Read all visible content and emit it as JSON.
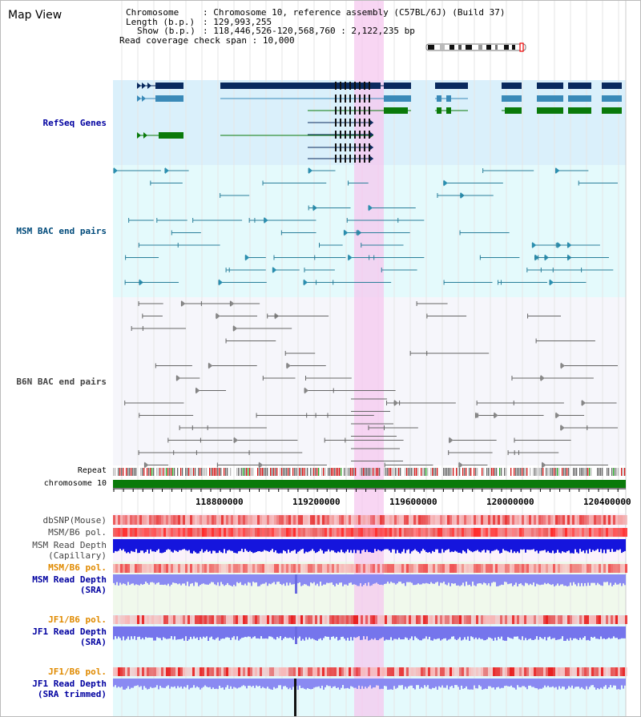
{
  "window": {
    "title": "Map View"
  },
  "header": {
    "chromosome_label": "Chromosome",
    "chromosome_value": "Chromosome 10, reference assembly (C57BL/6J) (Build 37)",
    "length_label": "Length (b.p.)",
    "length_value": "129,993,255",
    "show_label": "Show (b.p.)",
    "show_value": "118,446,526-120,568,760 : 2,122,235 bp",
    "coverage_label": "Read coverage check span",
    "coverage_value": "10,000"
  },
  "tracks": {
    "refseq": "RefSeq Genes",
    "msm_bac": "MSM BAC end pairs",
    "b6n_bac": "B6N BAC end pairs",
    "repeat": "Repeat",
    "chromosome": "chromosome 10",
    "dbsnp": "dbSNP(Mouse)",
    "msm_b6_pol_1": "MSM/B6 pol.",
    "msm_depth_cap_1": "MSM Read Depth",
    "msm_depth_cap_2": "(Capillary)",
    "msm_b6_pol_2": "MSM/B6 pol.",
    "msm_depth_sra_1": "MSM Read Depth",
    "msm_depth_sra_2": "(SRA)",
    "jf1_b6_pol_1": "JF1/B6 pol.",
    "jf1_depth_sra_1": "JF1 Read Depth",
    "jf1_depth_sra_2": "(SRA)",
    "jf1_b6_pol_2": "JF1/B6 pol.",
    "jf1_depth_trim_1": "JF1 Read Depth",
    "jf1_depth_trim_2": "(SRA trimmed)"
  },
  "axis": {
    "ticks": [
      "118800000",
      "119200000",
      "119600000",
      "120000000",
      "120400000"
    ]
  },
  "colors": {
    "refseq_dark": "#0a2a5e",
    "refseq_mid": "#3a8ab8",
    "refseq_green": "#0a7a0a",
    "msm_label": "#004a7a",
    "track_label_blue": "#0000a0",
    "track_label_orange": "#e08a00",
    "highlight": "#f5c8ef"
  }
}
